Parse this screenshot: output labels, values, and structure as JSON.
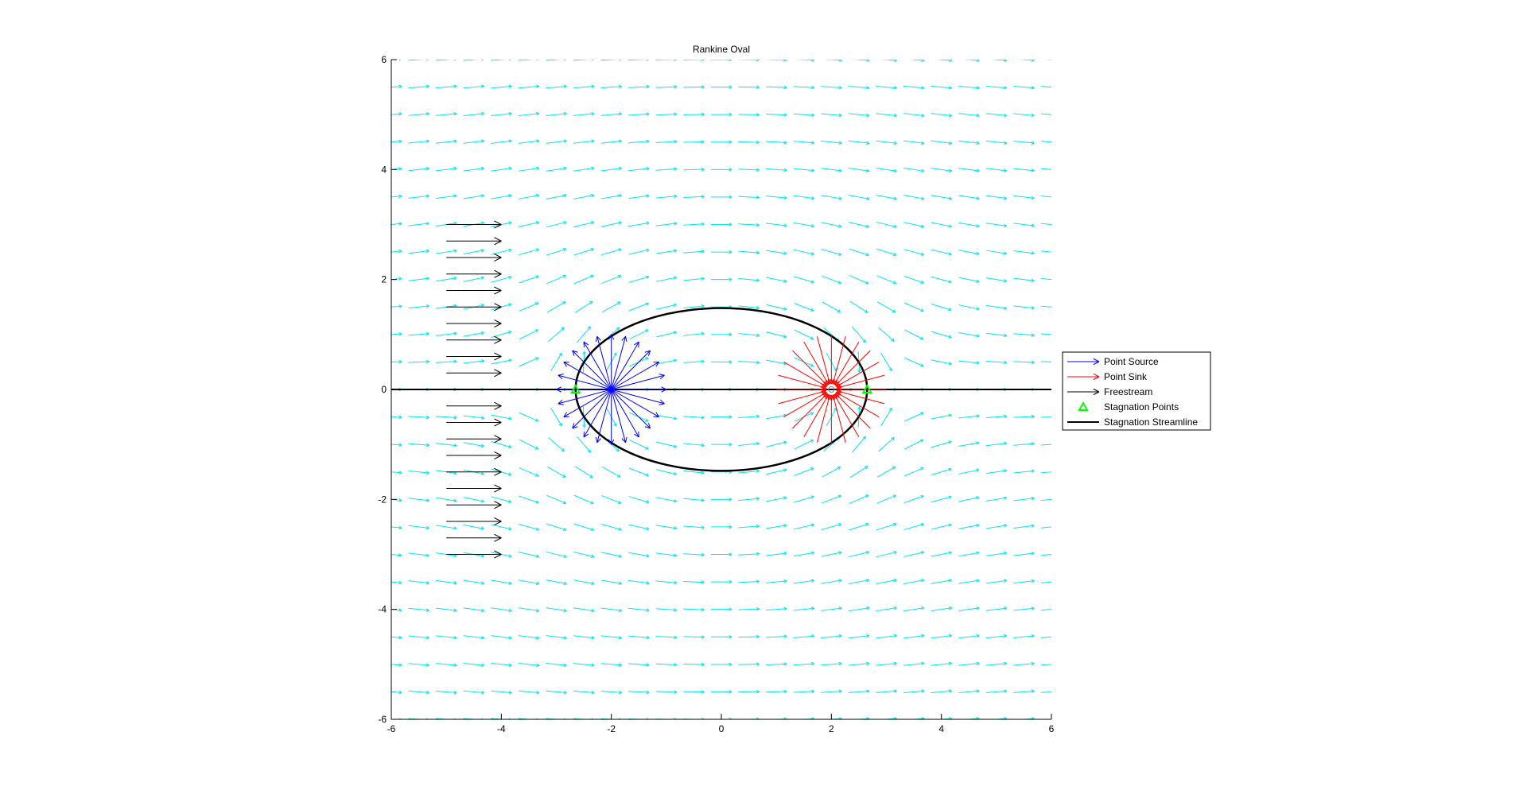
{
  "chart_data": {
    "type": "quiver",
    "title": "Rankine Oval",
    "xlabel": "",
    "ylabel": "",
    "xlim": [
      -6,
      6
    ],
    "ylim": [
      -6,
      6
    ],
    "xticks": [
      "-6",
      "-4",
      "-2",
      "0",
      "2",
      "4",
      "6"
    ],
    "yticks": [
      "-6",
      "-4",
      "-2",
      "0",
      "2",
      "4",
      "6"
    ],
    "grid": false,
    "legend_position": "outside-right",
    "freestream": {
      "name": "Freestream",
      "color": "#000000",
      "x": -5,
      "y_values": [
        -3,
        -2.7,
        -2.4,
        -2.1,
        -1.8,
        -1.5,
        -1.2,
        -0.9,
        -0.6,
        -0.3,
        0.3,
        0.6,
        0.9,
        1.2,
        1.5,
        1.8,
        2.1,
        2.4,
        2.7,
        3
      ]
    },
    "source": {
      "name": "Point Source",
      "color": "#0000ff",
      "x": -2,
      "y": 0,
      "num_rays": 24
    },
    "sink": {
      "name": "Point Sink",
      "color": "#ff0000",
      "x": 2,
      "y": 0,
      "num_rays": 24
    },
    "stagnation_points": {
      "name": "Stagnation Points",
      "color": "#00ff00",
      "x": [
        -2.65,
        2.65
      ],
      "y": [
        0,
        0
      ]
    },
    "stagnation_streamline": {
      "name": "Stagnation Streamline",
      "color": "#000000",
      "oval_half_length": 2.65,
      "oval_half_height": 1.48,
      "axis_line_x": [
        -6,
        6
      ],
      "axis_line_y": 0
    },
    "velocity_field": {
      "name": "",
      "color": "#00e5ee",
      "x_min": -6,
      "x_max": 6,
      "x_step": 0.5,
      "y_min": -6,
      "y_max": 6,
      "y_step": 0.5
    },
    "legend": [
      "Point Source",
      "Point Sink",
      "Freestream",
      "Stagnation Points",
      "Stagnation Streamline"
    ]
  }
}
